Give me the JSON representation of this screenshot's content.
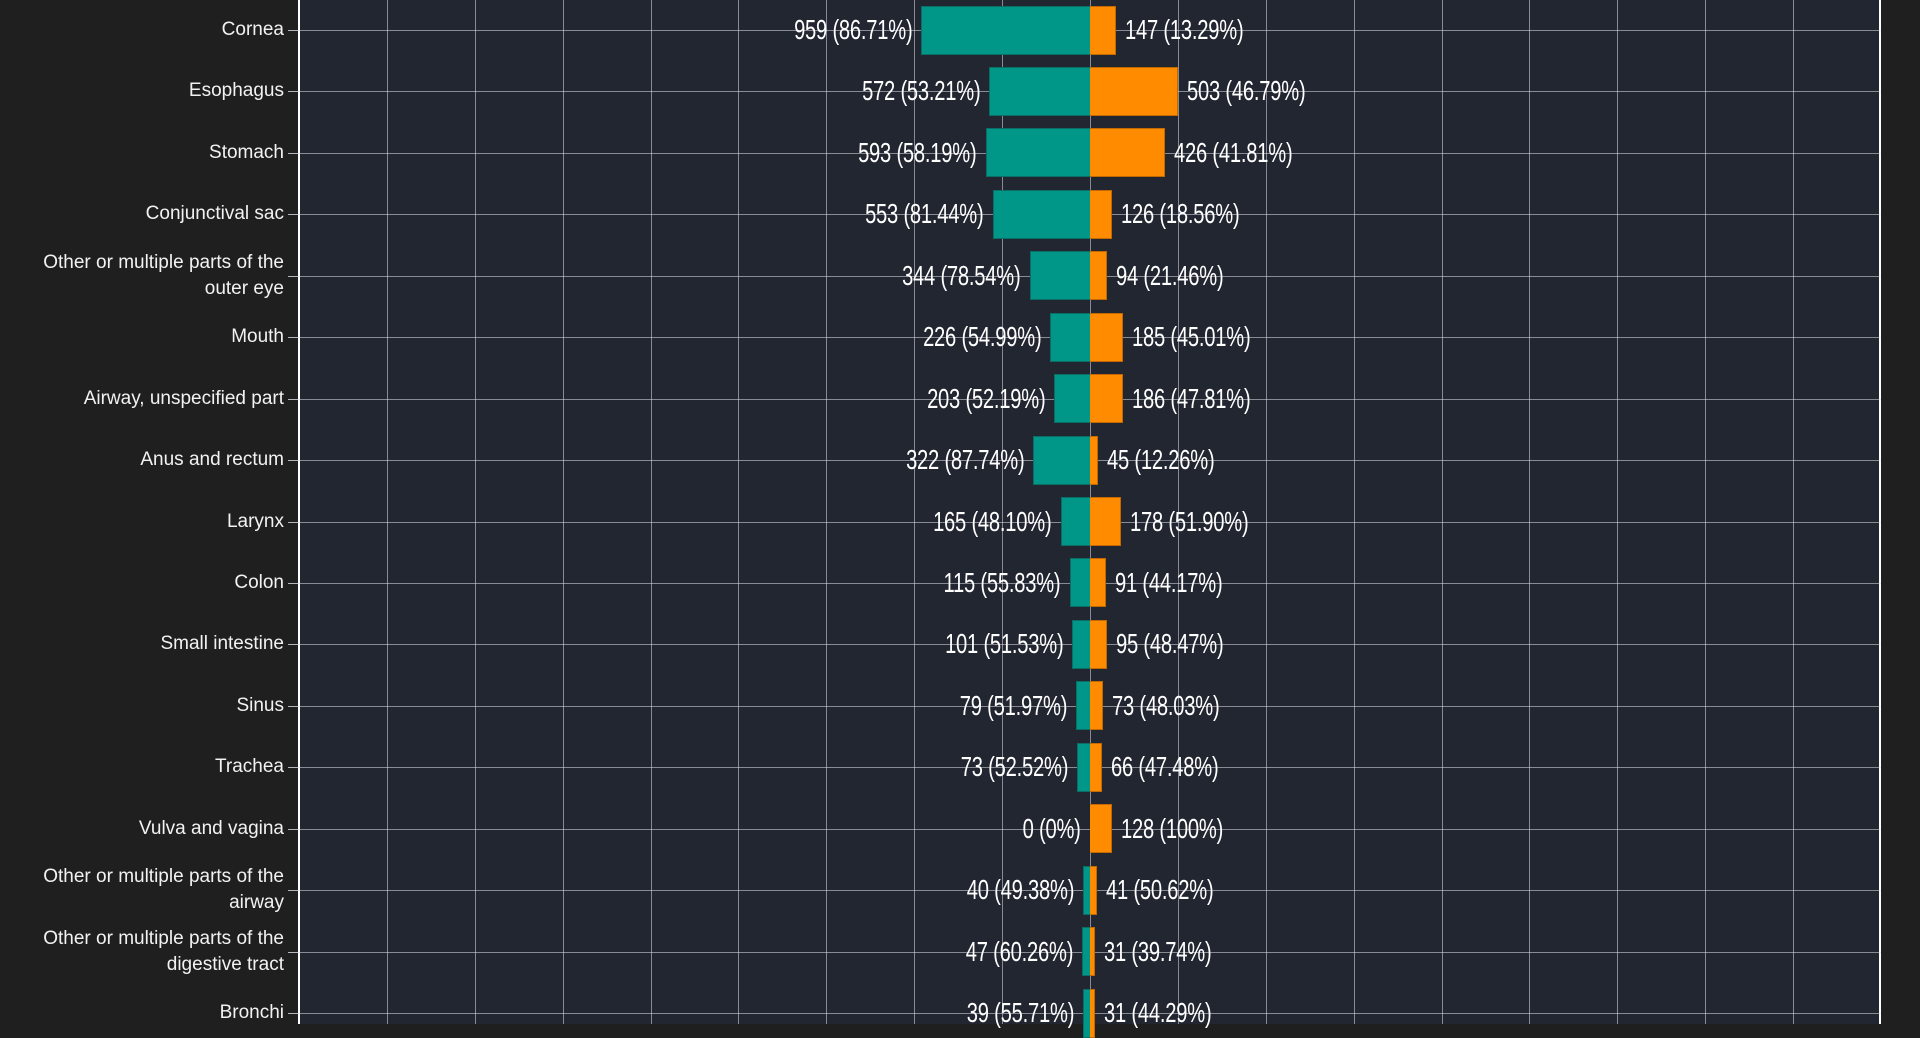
{
  "chart_data": {
    "type": "bar",
    "orientation": "horizontal",
    "layout": "diverging",
    "title": "",
    "xlabel": "",
    "ylabel": "",
    "xlim": [
      -4500,
      4500
    ],
    "x_grid_step": 500,
    "grid": true,
    "legend": null,
    "colors": {
      "left_series": "#009688",
      "right_series": "#ff8c00"
    },
    "categories": [
      "Cornea",
      "Esophagus",
      "Stomach",
      "Conjunctival sac",
      "Other or multiple parts of the outer eye",
      "Mouth",
      "Airway, unspecified part",
      "Anus and rectum",
      "Larynx",
      "Colon",
      "Small intestine",
      "Sinus",
      "Trachea",
      "Vulva and vagina",
      "Other or multiple parts of the airway",
      "Other or multiple parts of the digestive tract",
      "Bronchi"
    ],
    "series": [
      {
        "name": "left",
        "side": "left",
        "color": "#009688",
        "values": [
          959,
          572,
          593,
          553,
          344,
          226,
          203,
          322,
          165,
          115,
          101,
          79,
          73,
          0,
          40,
          47,
          39
        ],
        "labels": [
          "959 (86.71%)",
          "572 (53.21%)",
          "593 (58.19%)",
          "553 (81.44%)",
          "344 (78.54%)",
          "226 (54.99%)",
          "203 (52.19%)",
          "322 (87.74%)",
          "165 (48.10%)",
          "115 (55.83%)",
          "101 (51.53%)",
          "79 (51.97%)",
          "73 (52.52%)",
          "0 (0%)",
          "40 (49.38%)",
          "47 (60.26%)",
          "39 (55.71%)"
        ]
      },
      {
        "name": "right",
        "side": "right",
        "color": "#ff8c00",
        "values": [
          147,
          503,
          426,
          126,
          94,
          185,
          186,
          45,
          178,
          91,
          95,
          73,
          66,
          128,
          41,
          31,
          31
        ],
        "labels": [
          "147 (13.29%)",
          "503 (46.79%)",
          "426 (41.81%)",
          "126 (18.56%)",
          "94 (21.46%)",
          "185 (45.01%)",
          "186 (47.81%)",
          "45 (12.26%)",
          "178 (51.90%)",
          "91 (44.17%)",
          "95 (48.47%)",
          "73 (48.03%)",
          "66 (47.48%)",
          "128 (100%)",
          "41 (50.62%)",
          "31 (39.74%)",
          "31 (44.29%)"
        ]
      }
    ]
  }
}
